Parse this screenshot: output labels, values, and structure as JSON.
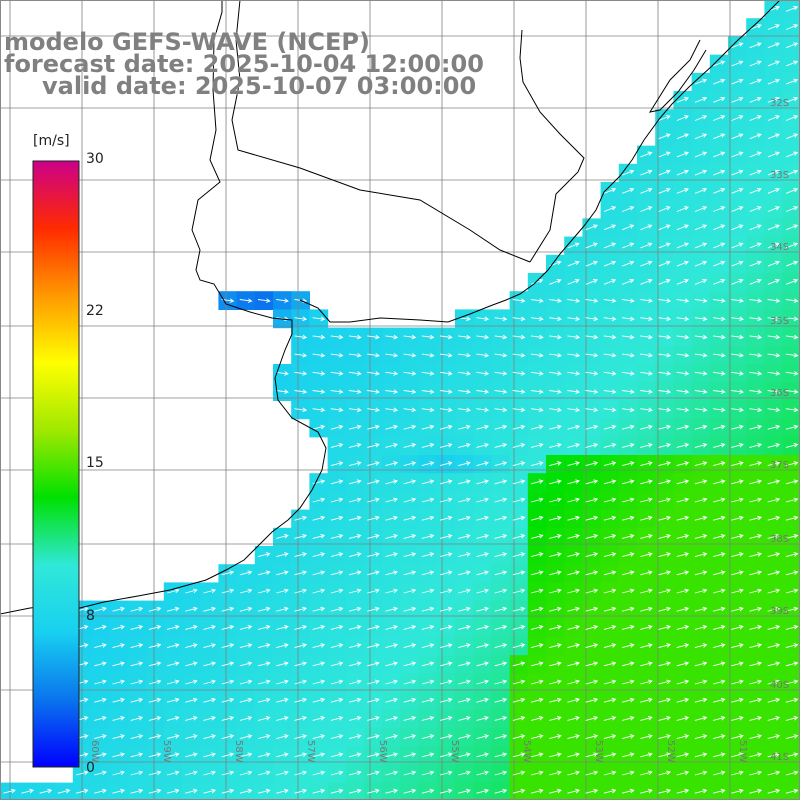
{
  "header": {
    "model_line": "modelo GEFS-WAVE (NCEP)",
    "forecast_line": "forecast date: 2025-10-04 12:00:00",
    "valid_line": "valid date: 2025-10-07 03:00:00"
  },
  "colorbar": {
    "unit": "[m/s]",
    "ticks": [
      "30",
      "22",
      "15",
      "8",
      "0"
    ],
    "tick_values": [
      30,
      22,
      15,
      8,
      0
    ],
    "min": 0,
    "max": 30,
    "colors": [
      "#0000ff",
      "#0a74ee",
      "#18d0f0",
      "#30e8d8",
      "#00e000",
      "#a0e800",
      "#ffff00",
      "#ff9900",
      "#ff2a00",
      "#cc0088"
    ]
  },
  "grid": {
    "lat_labels": [
      "32S",
      "33S",
      "34S",
      "35S",
      "36S",
      "37S",
      "38S",
      "39S",
      "40S",
      "41S"
    ],
    "lon_labels": [
      "60W",
      "59W",
      "58W",
      "57W",
      "56W",
      "55W",
      "54W",
      "53W",
      "52W",
      "51W"
    ]
  },
  "colors": {
    "land": "#ffffff",
    "coastline": "#000000",
    "grid": "#808080",
    "arrow": "#ffffff",
    "title": "#808080"
  }
}
